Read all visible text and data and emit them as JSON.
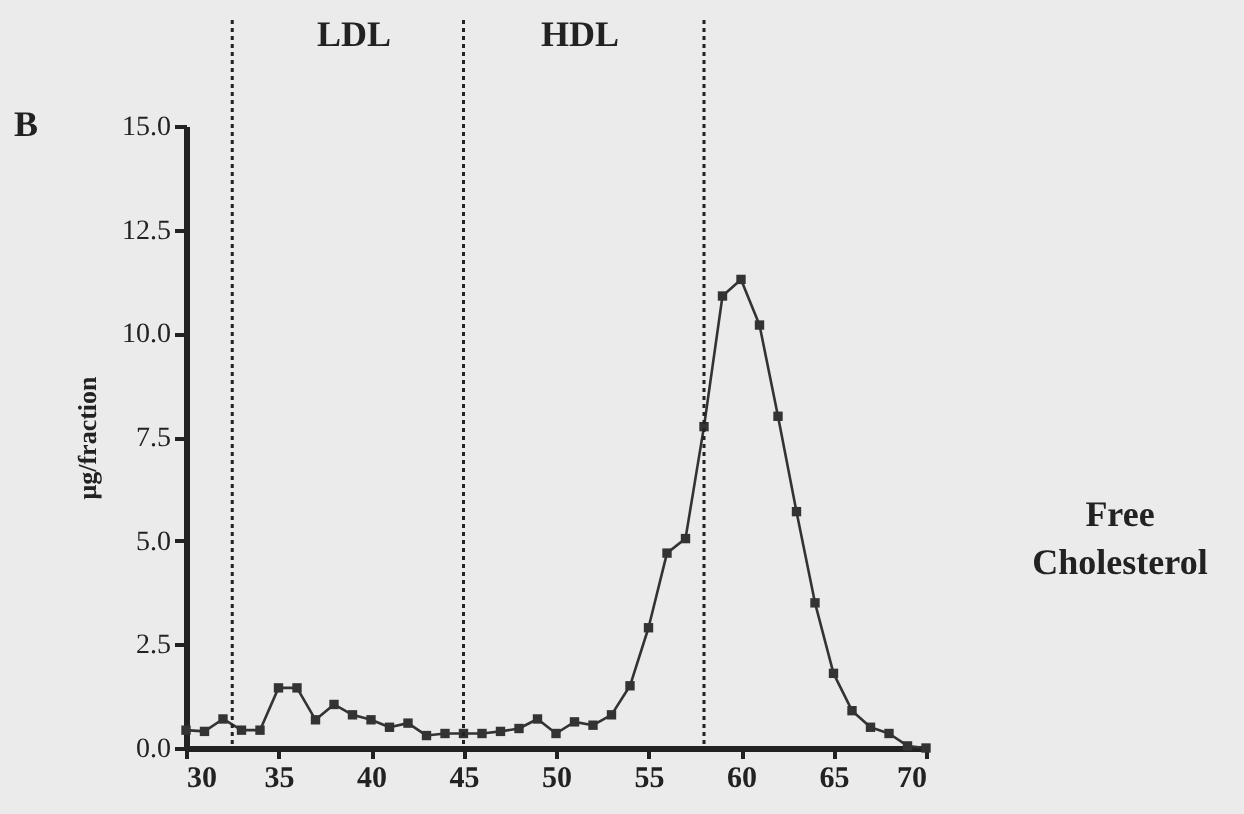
{
  "chart_data": {
    "type": "line",
    "ylabel": "μg/fraction",
    "x": [
      30,
      31,
      32,
      33,
      34,
      35,
      36,
      37,
      38,
      39,
      40,
      41,
      42,
      43,
      44,
      45,
      46,
      47,
      48,
      49,
      50,
      51,
      52,
      53,
      54,
      55,
      56,
      57,
      58,
      59,
      60,
      61,
      62,
      63,
      64,
      65,
      66,
      67,
      68,
      69,
      70
    ],
    "series": [
      {
        "color": "#333333",
        "values": [
          0.43,
          0.4,
          0.7,
          0.43,
          0.43,
          1.45,
          1.45,
          0.68,
          1.05,
          0.8,
          0.68,
          0.5,
          0.6,
          0.3,
          0.35,
          0.35,
          0.35,
          0.4,
          0.47,
          0.7,
          0.35,
          0.63,
          0.55,
          0.8,
          1.5,
          2.9,
          4.7,
          5.05,
          7.75,
          10.9,
          11.3,
          10.2,
          8.0,
          5.7,
          3.5,
          1.8,
          0.9,
          0.5,
          0.35,
          0.05,
          0.0
        ]
      }
    ],
    "xlim": [
      30,
      70
    ],
    "xticks": [
      30,
      35,
      40,
      45,
      50,
      55,
      60,
      65,
      70
    ],
    "ylim": [
      0,
      15
    ],
    "yticks": [
      {
        "value": 0,
        "label": "0.0"
      },
      {
        "value": 2.5,
        "label": "2.5"
      },
      {
        "value": 5,
        "label": "5.0"
      },
      {
        "value": 7.5,
        "label": "7.5"
      },
      {
        "value": 10,
        "label": "10.0"
      },
      {
        "value": 12.5,
        "label": "12.5"
      },
      {
        "value": 15,
        "label": "15.0"
      }
    ],
    "ref_lines": [
      {
        "axis": "x",
        "value": 32.5
      },
      {
        "axis": "x",
        "value": 45
      },
      {
        "axis": "x",
        "value": 58
      }
    ],
    "annotations": [
      "B",
      "LDL",
      "HDL",
      "Free Cholesterol"
    ],
    "marker": "square",
    "line_style": "solid",
    "grid": false,
    "legend": false
  }
}
